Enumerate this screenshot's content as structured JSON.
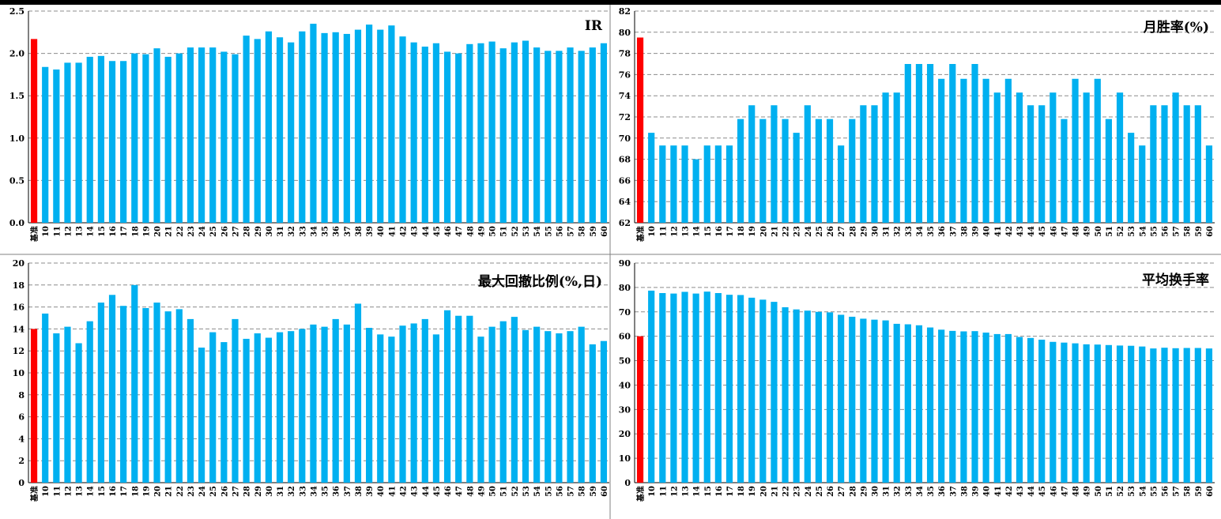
{
  "chart_data": [
    {
      "type": "bar",
      "title": "IR",
      "categories": [
        "基准",
        "10",
        "11",
        "12",
        "13",
        "14",
        "15",
        "16",
        "17",
        "18",
        "19",
        "20",
        "21",
        "22",
        "23",
        "24",
        "25",
        "26",
        "27",
        "28",
        "29",
        "30",
        "31",
        "32",
        "33",
        "34",
        "35",
        "36",
        "37",
        "38",
        "39",
        "40",
        "41",
        "42",
        "43",
        "44",
        "45",
        "46",
        "47",
        "48",
        "49",
        "50",
        "51",
        "52",
        "53",
        "54",
        "55",
        "56",
        "57",
        "58",
        "59",
        "60"
      ],
      "values": [
        2.17,
        1.84,
        1.81,
        1.89,
        1.89,
        1.96,
        1.97,
        1.91,
        1.91,
        2.0,
        1.99,
        2.06,
        1.96,
        2.0,
        2.07,
        2.07,
        2.07,
        2.02,
        1.99,
        2.21,
        2.17,
        2.26,
        2.19,
        2.13,
        2.26,
        2.35,
        2.24,
        2.25,
        2.23,
        2.28,
        2.34,
        2.28,
        2.33,
        2.2,
        2.13,
        2.08,
        2.12,
        2.02,
        2.0,
        2.11,
        2.12,
        2.14,
        2.06,
        2.13,
        2.15,
        2.07,
        2.03,
        2.03,
        2.07,
        2.03,
        2.07,
        2.12
      ],
      "ylim": [
        0,
        2.5
      ],
      "yticks": [
        "0.0",
        "0.5",
        "1.0",
        "1.5",
        "2.0",
        "2.5"
      ],
      "grid": true,
      "benchmark_color": "#ff0000",
      "bar_color": "#00b0f0"
    },
    {
      "type": "bar",
      "title": "月胜率(%)",
      "categories": [
        "基准",
        "10",
        "11",
        "12",
        "13",
        "14",
        "15",
        "16",
        "17",
        "18",
        "19",
        "20",
        "21",
        "22",
        "23",
        "24",
        "25",
        "26",
        "27",
        "28",
        "29",
        "30",
        "31",
        "32",
        "33",
        "34",
        "35",
        "36",
        "37",
        "38",
        "39",
        "40",
        "41",
        "42",
        "43",
        "44",
        "45",
        "46",
        "47",
        "48",
        "49",
        "50",
        "51",
        "52",
        "53",
        "54",
        "55",
        "56",
        "57",
        "58",
        "59",
        "60"
      ],
      "values": [
        79.5,
        70.5,
        69.3,
        69.3,
        69.3,
        68.0,
        69.3,
        69.3,
        69.3,
        71.8,
        73.1,
        71.8,
        73.1,
        71.8,
        70.5,
        73.1,
        71.8,
        71.8,
        69.3,
        71.8,
        73.1,
        73.1,
        74.3,
        74.3,
        77.0,
        77.0,
        77.0,
        75.6,
        77.0,
        75.6,
        77.0,
        75.6,
        74.3,
        75.6,
        74.3,
        73.1,
        73.1,
        74.3,
        71.8,
        75.6,
        74.3,
        75.6,
        71.8,
        74.3,
        70.5,
        69.3,
        73.1,
        73.1,
        74.3,
        73.1,
        73.1,
        69.3
      ],
      "ylim": [
        62,
        82
      ],
      "yticks": [
        "62",
        "64",
        "66",
        "68",
        "70",
        "72",
        "74",
        "76",
        "78",
        "80",
        "82"
      ],
      "grid": true,
      "benchmark_color": "#ff0000",
      "bar_color": "#00b0f0"
    },
    {
      "type": "bar",
      "title": "最大回撤比例(%,日)",
      "categories": [
        "基准",
        "10",
        "11",
        "12",
        "13",
        "14",
        "15",
        "16",
        "17",
        "18",
        "19",
        "20",
        "21",
        "22",
        "23",
        "24",
        "25",
        "26",
        "27",
        "28",
        "29",
        "30",
        "31",
        "32",
        "33",
        "34",
        "35",
        "36",
        "37",
        "38",
        "39",
        "40",
        "41",
        "42",
        "43",
        "44",
        "45",
        "46",
        "47",
        "48",
        "49",
        "50",
        "51",
        "52",
        "53",
        "54",
        "55",
        "56",
        "57",
        "58",
        "59",
        "60"
      ],
      "values": [
        14.0,
        15.4,
        13.6,
        14.2,
        12.7,
        14.7,
        16.4,
        17.1,
        16.1,
        18.0,
        15.9,
        16.4,
        15.6,
        15.8,
        14.9,
        12.3,
        13.7,
        12.8,
        14.9,
        13.1,
        13.6,
        13.2,
        13.7,
        13.8,
        14.0,
        14.4,
        14.2,
        14.9,
        14.4,
        16.3,
        14.1,
        13.5,
        13.3,
        14.3,
        14.5,
        14.9,
        13.5,
        15.7,
        15.2,
        15.2,
        13.3,
        14.2,
        14.7,
        15.1,
        13.9,
        14.2,
        13.8,
        13.6,
        13.8,
        14.2,
        12.6,
        12.9
      ],
      "ylim": [
        0,
        20
      ],
      "yticks": [
        "0",
        "2",
        "4",
        "6",
        "8",
        "10",
        "12",
        "14",
        "16",
        "18",
        "20"
      ],
      "grid": true,
      "benchmark_color": "#ff0000",
      "bar_color": "#00b0f0"
    },
    {
      "type": "bar",
      "title": "平均换手率",
      "categories": [
        "基准",
        "10",
        "11",
        "12",
        "13",
        "14",
        "15",
        "16",
        "17",
        "18",
        "19",
        "20",
        "21",
        "22",
        "23",
        "24",
        "25",
        "26",
        "27",
        "28",
        "29",
        "30",
        "31",
        "32",
        "33",
        "34",
        "35",
        "36",
        "37",
        "38",
        "39",
        "40",
        "41",
        "42",
        "43",
        "44",
        "45",
        "46",
        "47",
        "48",
        "49",
        "50",
        "51",
        "52",
        "53",
        "54",
        "55",
        "56",
        "57",
        "58",
        "59",
        "60"
      ],
      "values": [
        60.0,
        78.7,
        77.7,
        77.5,
        78.2,
        77.5,
        78.3,
        77.7,
        77.0,
        76.9,
        75.8,
        75.0,
        74.1,
        71.9,
        71.0,
        70.5,
        70.0,
        69.8,
        68.8,
        68.0,
        67.2,
        66.8,
        66.5,
        65.1,
        64.9,
        64.5,
        63.6,
        62.7,
        62.2,
        62.0,
        62.1,
        61.5,
        60.9,
        60.9,
        59.7,
        59.3,
        58.6,
        57.7,
        57.4,
        57.1,
        56.7,
        56.6,
        56.4,
        56.2,
        56.1,
        55.8,
        55.0,
        55.3,
        55.1,
        55.2,
        55.2,
        55.0
      ],
      "ylim": [
        0,
        90
      ],
      "yticks": [
        "0",
        "10",
        "20",
        "30",
        "40",
        "50",
        "60",
        "70",
        "80",
        "90"
      ],
      "grid": true,
      "benchmark_color": "#ff0000",
      "bar_color": "#00b0f0"
    }
  ]
}
